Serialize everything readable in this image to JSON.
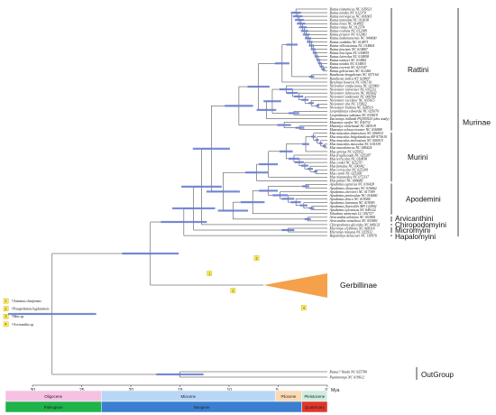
{
  "tips": [
    "Rattus tiomanicus NC 035621",
    "Rattus nitidus NC 012374",
    "Rattus norvegicus NC 001665",
    "Rattus tanezumi NC 011638",
    "Rattus losea NC 014855",
    "Rattus rattus NC 012374",
    "Rattus exulans NC 012389",
    "Rattus praetor NC 012461",
    "Rattus andamanensis NC 040600",
    "Rattus sordidus NC 014871",
    "Rattus villosissimus NC 014864",
    "Rattus fuscipes NC 014867",
    "Rattus leucopus NC 014855",
    "Rattus lutreolus NC 014858",
    "Rattus tunneyi NC 014861",
    "Rattus nitidus NC 014853",
    "Rattus everetti NC 023347",
    "Rattus giluwensis NC 012461",
    "Bandicota bengalensis NC 057164",
    "Bandicota indica KT 029807",
    "Berylmys bowersi NC 036710",
    "Niviventer confucianus NC 023960",
    "Niviventer niviventer NC 035232",
    "Niviventer fulvescens NC 065602",
    "Niviventer andersoni NC 066500",
    "Niviventer excelsior NC 035615",
    "Niviventer eha NC 115822",
    "Niviventer brahma NC 028519",
    "Leopoldamys edwardsi NC 025670",
    "Leopoldamys sabanus NC 035819",
    "Dacnomys millardi PQ359525 (this study)",
    "Maxomys surifer NC 036732",
    "Maxomys whiteheadi NC 049119",
    "Maxomys ochraceiventer NC 036988",
    "Mus musculus domesticus NC 006914",
    "Mus musculus helgolandicus KP 873610",
    "Mus musculus molossinus NC 006915",
    "Mus musculus musculus NC 010339",
    "Mus macedonicus NC 085424",
    "Mus spretus NC 025952",
    "Mus fragilicauda NC 025287",
    "Mus terricolor NC 010838",
    "Mus cookii NC 025270",
    "Mus famulus NC 030342",
    "Mus cervicolor NC 025269",
    "Mus caroli NC 025268",
    "Mus minutoides NC 072337",
    "Mus pahari NC 006680",
    "Apodemus agrarius NC 016428",
    "Apodemus chejuensis NC 016662",
    "Apodemus chevrieri NC 017399",
    "Apodemus peninsulae NC 016060",
    "Apodemus draco NC 019584",
    "Apodemus latronum NC 019583",
    "Apodemus flavicollis MN 122902",
    "Apodemus sylvaticus NC 049122",
    "Tokudaia osimensis LC 092727",
    "Arvicanthis niloticus NC 053801",
    "Arvicanthis somalicus NC 053801",
    "Chiropodomys gliroides NC 049121",
    "Micromys erythrotis NC 068316",
    "Micromys minutus NC 025932",
    "Hapalomys delacouri NC 139976",
    "Gerbillinae",
    "Rattus? Vanda NC 025780",
    "Psammomys NC 019612"
  ],
  "groups": {
    "murinae": "Murinae",
    "rattini": "Rattini",
    "murini": "Murini",
    "apodemini": "Apodemini",
    "arvicanthini": "Arvicanthini",
    "chiropodomyini": "Chiropodomyini",
    "micromyini": "Micromyini",
    "hapalomyini": "Hapalomyini",
    "gerbillinae": "Gerbillinae",
    "outgroup": "OutGroup"
  },
  "calibrations": [
    {
      "n": "1",
      "label": "†Antemus chinjiensis"
    },
    {
      "n": "2",
      "label": "†Parapodemus lugdunensis"
    },
    {
      "n": "3",
      "label": "†Mus sp."
    },
    {
      "n": "4",
      "label": "†Arvicanthis sp."
    }
  ],
  "axis": {
    "ticks": [
      "30",
      "25",
      "20",
      "15",
      "10",
      "5",
      "0"
    ],
    "unit": "Mya"
  },
  "epochs": [
    "Oligocene",
    "Miocene",
    "Pliocene",
    "Pleistocene"
  ],
  "periods": [
    "Paleogene",
    "Neogene",
    "Quaternary"
  ],
  "colors": {
    "oligocene": "#f5c2e3",
    "miocene": "#b9d7f5",
    "pliocene": "#fbd9b4",
    "pleistocene": "#cdeee0",
    "paleogene": "#1fb34a",
    "neogene": "#3a7fd0",
    "quaternary": "#e0362b",
    "gerbil": "#f5a04a",
    "hpd": "#6a7fd2",
    "calibration": "#ffee55"
  }
}
